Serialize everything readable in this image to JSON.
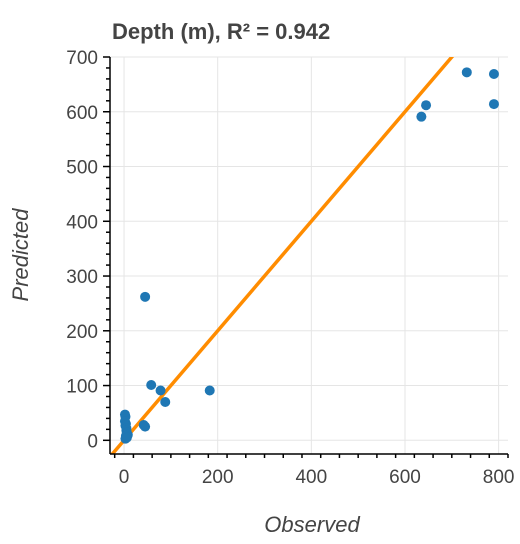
{
  "chart_data": {
    "type": "scatter",
    "title": "Depth (m), R² = 0.942",
    "xlabel": "Observed",
    "ylabel": "Predicted",
    "xlim": [
      -30,
      820
    ],
    "ylim": [
      -25,
      700
    ],
    "xticks": [
      0,
      200,
      400,
      600,
      800
    ],
    "yticks": [
      0,
      100,
      200,
      300,
      400,
      500,
      600,
      700
    ],
    "grid": true,
    "colors": {
      "points": "#1f77b4",
      "fit_line": "#ff8c00",
      "axis": "#000000",
      "grid": "#e5e5e5",
      "text": "#444444"
    },
    "series": [
      {
        "kind": "points",
        "x": [
          2,
          3,
          2,
          4,
          3,
          5,
          5,
          6,
          8,
          4,
          6,
          3,
          42,
          45,
          58,
          78,
          88,
          183,
          45,
          635,
          645,
          732,
          790,
          790
        ],
        "y": [
          47,
          43,
          35,
          30,
          27,
          22,
          18,
          14,
          10,
          8,
          5,
          3,
          28,
          25,
          101,
          91,
          70,
          91,
          262,
          591,
          612,
          672,
          669,
          614
        ]
      },
      {
        "kind": "line",
        "x": [
          -30,
          820
        ],
        "y": [
          -30,
          820
        ]
      }
    ]
  }
}
